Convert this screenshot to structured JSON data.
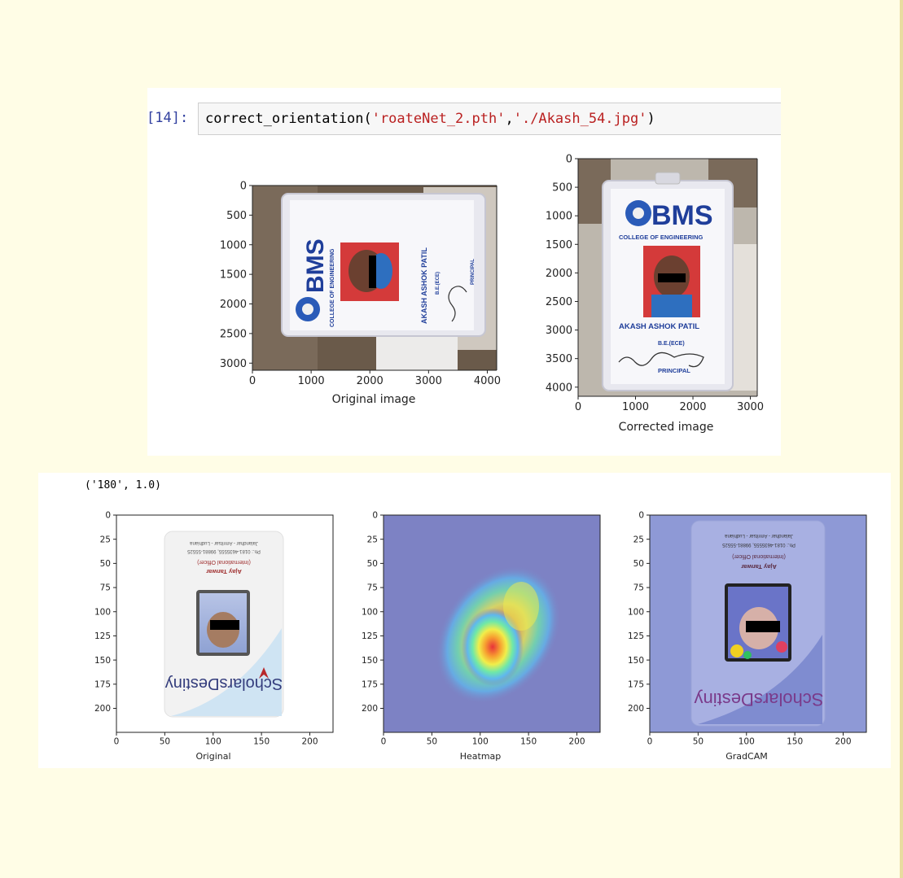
{
  "cell": {
    "prompt": "[14]:",
    "code": {
      "fn": "correct_orientation(",
      "arg1": "'roateNet_2.pth'",
      "sep": ",",
      "arg2": "'./Akash_54.jpg'",
      "close": ")"
    }
  },
  "output_text": "('180', 1.0)",
  "top_plots": {
    "original": {
      "xlabel": "Original image",
      "xticks": [
        "0",
        "1000",
        "2000",
        "3000",
        "4000"
      ],
      "yticks": [
        "0",
        "500",
        "1000",
        "1500",
        "2000",
        "2500",
        "3000"
      ]
    },
    "corrected": {
      "xlabel": "Corrected image",
      "xticks": [
        "0",
        "1000",
        "2000",
        "3000"
      ],
      "yticks": [
        "0",
        "500",
        "1000",
        "1500",
        "2000",
        "2500",
        "3000",
        "3500",
        "4000"
      ]
    },
    "id_card": {
      "logo": "BMS",
      "college": "COLLEGE OF ENGINEERING",
      "name": "AKASH ASHOK PATIL",
      "course": "B.E.(ECE)",
      "principal": "PRINCIPAL"
    }
  },
  "bottom_plots": {
    "xticks": [
      "0",
      "50",
      "100",
      "150",
      "200"
    ],
    "yticks": [
      "0",
      "25",
      "50",
      "75",
      "100",
      "125",
      "150",
      "175",
      "200"
    ],
    "titles": [
      "Original",
      "Heatmap",
      "GradCAM"
    ],
    "card": {
      "brand": "ScholarsDestiny",
      "name": "Ajay Tanwar",
      "role": "(International Officer)",
      "phone": "Ph.: 0181-4635555, 99881-55525",
      "cities": "Jalandhar - Amritsar - Ludhiana"
    }
  },
  "colors": {
    "page_bg": "#fffde6",
    "prompt": "#303f9f",
    "string": "#ba2121",
    "heatmap_bg": "#7d82c4"
  }
}
